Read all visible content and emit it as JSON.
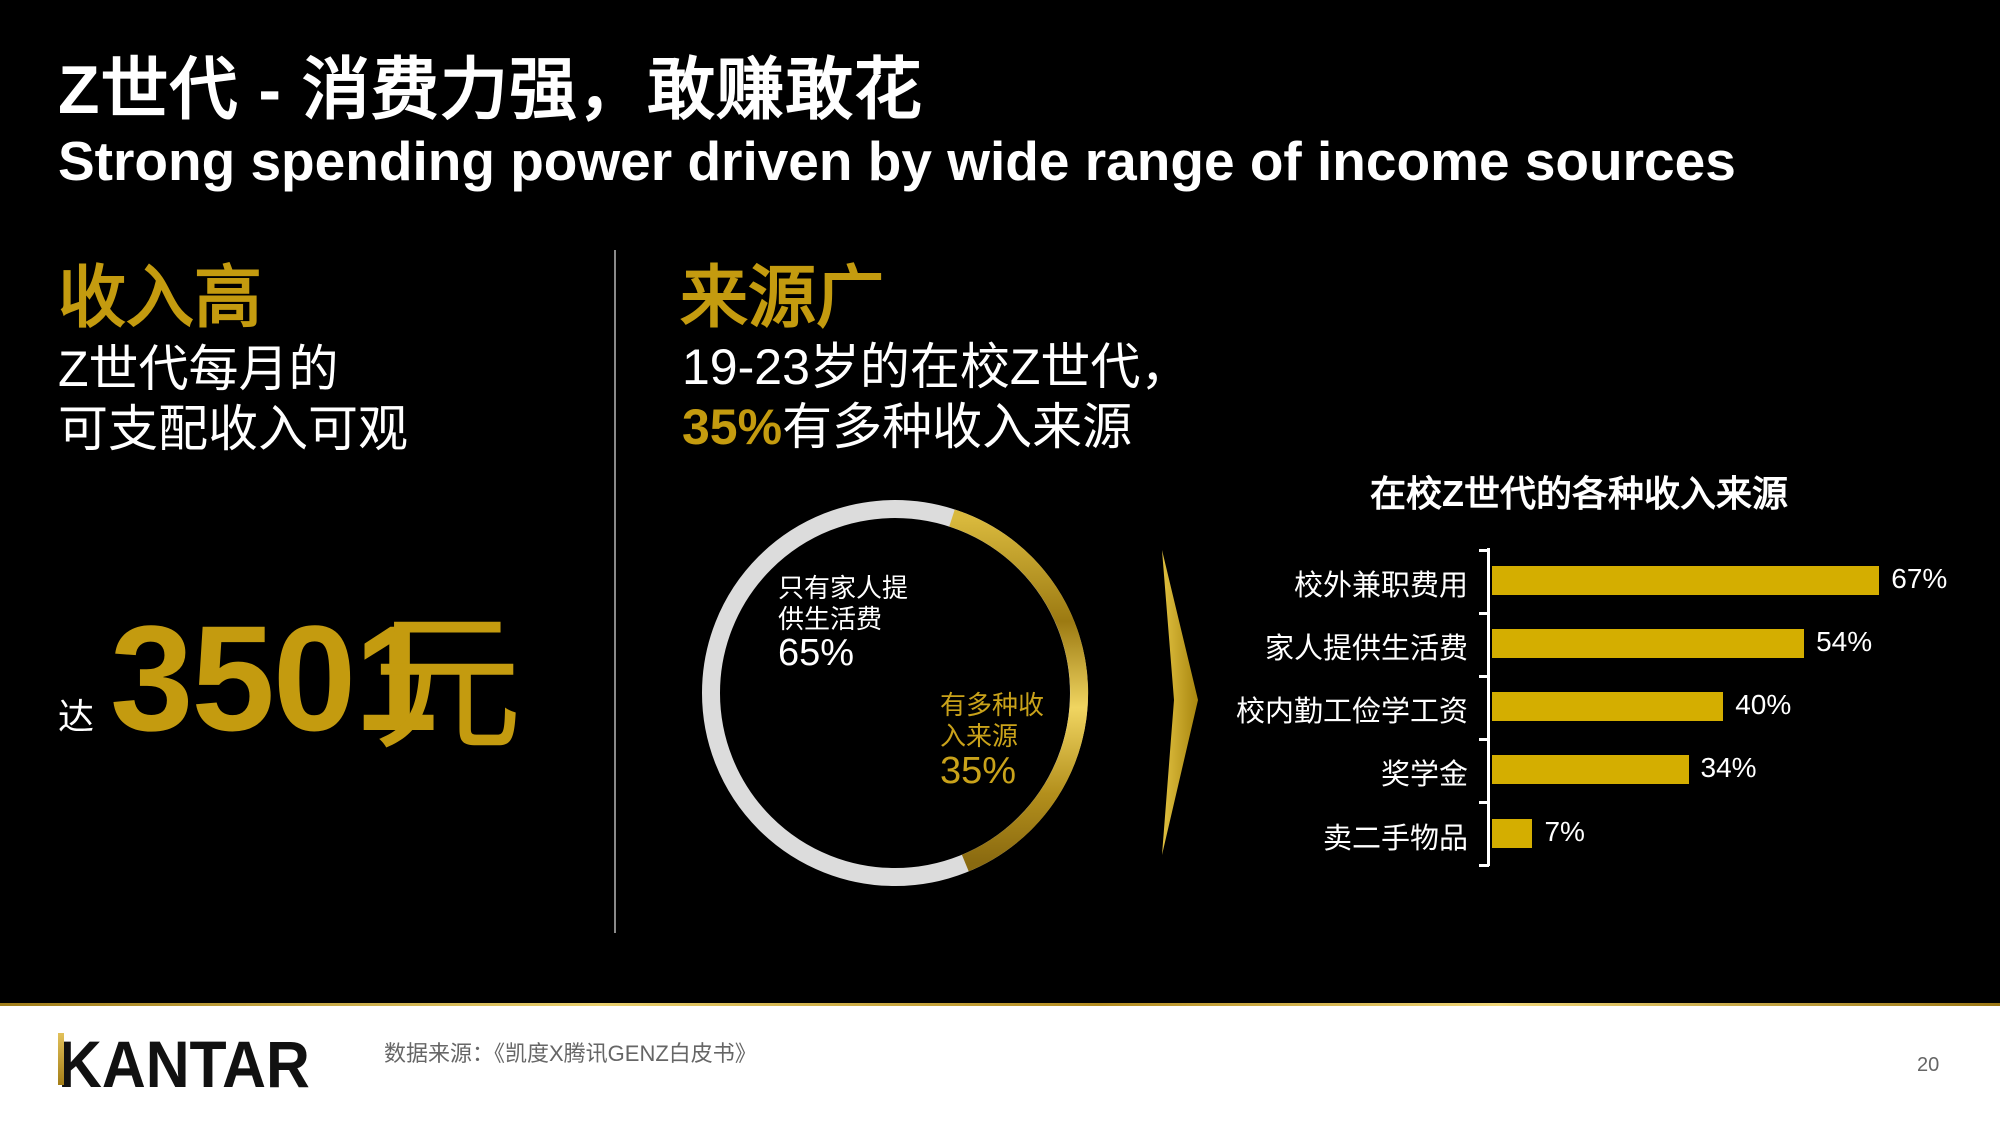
{
  "header": {
    "title_cn": "Z世代 - 消费力强，敢赚敢花",
    "title_en": "Strong spending power driven by wide range of income sources"
  },
  "left_section": {
    "heading": "收入高",
    "line1": "Z世代每月的",
    "line2": "可支配收入可观",
    "prefix": "达",
    "amount": "3501",
    "unit": "元"
  },
  "right_section": {
    "heading": "来源广",
    "line1": "19-23岁的在校Z世代，",
    "line2_pct": "35%",
    "line2_rest": "有多种收入来源"
  },
  "colors": {
    "gold": "#c49b0f",
    "bar": "#d4ae00",
    "ring_grey": "#dcdcdc",
    "background": "#000000"
  },
  "chart_data": [
    {
      "type": "pie",
      "subtype": "donut",
      "title": "",
      "categories": [
        "只有家人提供生活费",
        "有多种收入来源"
      ],
      "values": [
        65,
        35
      ],
      "labels": [
        {
          "text_line1": "只有家人提",
          "text_line2": "供生活费",
          "value": "65%"
        },
        {
          "text_line1": "有多种收",
          "text_line2": "入来源",
          "value": "35%"
        }
      ],
      "colors": [
        "#dcdcdc",
        "#c9a21a"
      ]
    },
    {
      "type": "bar",
      "orientation": "horizontal",
      "title": "在校Z世代的各种收入来源",
      "categories": [
        "校外兼职费用",
        "家人提供生活费",
        "校内勤工俭学工资",
        "奖学金",
        "卖二手物品"
      ],
      "values": [
        67,
        54,
        40,
        34,
        7
      ],
      "value_labels": [
        "67%",
        "54%",
        "40%",
        "34%",
        "7%"
      ],
      "xlabel": "",
      "ylabel": "",
      "xlim": [
        0,
        100
      ],
      "grid": false,
      "legend": null
    }
  ],
  "footer": {
    "logo": "KANTAR",
    "source": "数据来源：《凯度X腾讯GENZ白皮书》",
    "page_number": "20"
  }
}
